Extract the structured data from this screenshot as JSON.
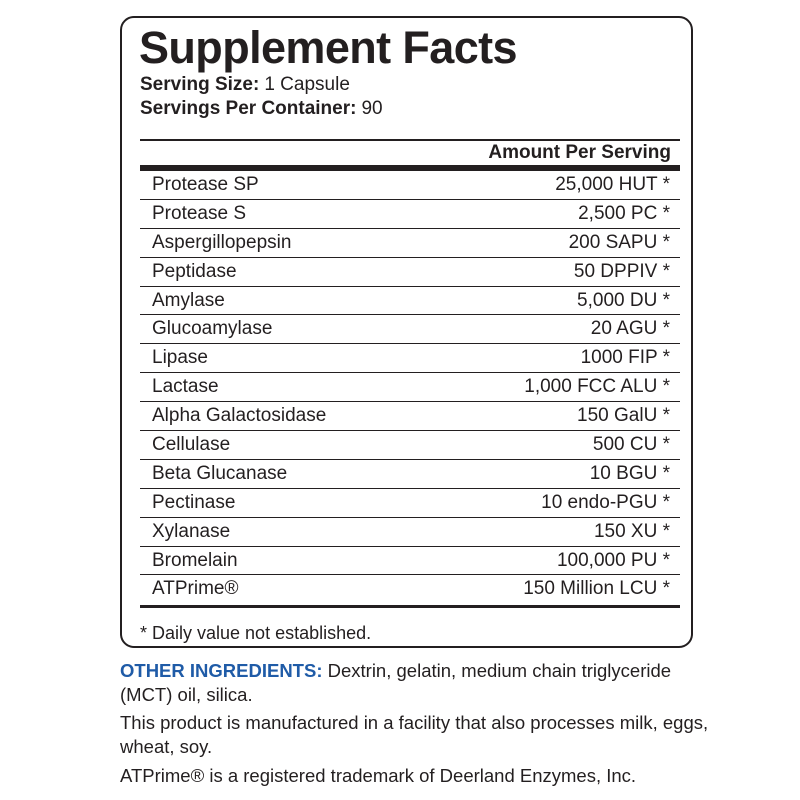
{
  "colors": {
    "text": "#231f20",
    "accent": "#1f5ba7",
    "background": "#ffffff"
  },
  "panel": {
    "title": "Supplement Facts",
    "serving_size_label": "Serving Size:",
    "serving_size_value": "1 Capsule",
    "servings_per_container_label": "Servings Per Container:",
    "servings_per_container_value": "90",
    "amount_per_serving_header": "Amount Per Serving",
    "rows": [
      {
        "name": "Protease SP",
        "amount": "25,000 HUT *"
      },
      {
        "name": "Protease S",
        "amount": "2,500 PC *"
      },
      {
        "name": "Aspergillopepsin",
        "amount": "200 SAPU *"
      },
      {
        "name": "Peptidase",
        "amount": "50 DPPIV *"
      },
      {
        "name": "Amylase",
        "amount": "5,000 DU *"
      },
      {
        "name": "Glucoamylase",
        "amount": "20 AGU *"
      },
      {
        "name": "Lipase",
        "amount": "1000 FIP *"
      },
      {
        "name": "Lactase",
        "amount": "1,000 FCC ALU *"
      },
      {
        "name": "Alpha Galactosidase",
        "amount": "150 GalU *"
      },
      {
        "name": "Cellulase",
        "amount": "500 CU *"
      },
      {
        "name": "Beta Glucanase",
        "amount": "10 BGU *"
      },
      {
        "name": "Pectinase",
        "amount": "10 endo-PGU *"
      },
      {
        "name": "Xylanase",
        "amount": "150 XU *"
      },
      {
        "name": "Bromelain",
        "amount": "100,000 PU *"
      },
      {
        "name": "ATPrime®",
        "amount": "150 Million LCU *"
      }
    ],
    "footnote": "* Daily value not established."
  },
  "footer": {
    "other_ingredients_label": "OTHER INGREDIENTS:",
    "other_ingredients_text": "Dextrin, gelatin, medium chain triglyceride (MCT) oil, silica.",
    "facility_notice": "This product is manufactured in a facility that also processes milk, eggs, wheat, soy.",
    "trademark_notice": "ATPrime® is a registered trademark of Deerland Enzymes, Inc."
  }
}
